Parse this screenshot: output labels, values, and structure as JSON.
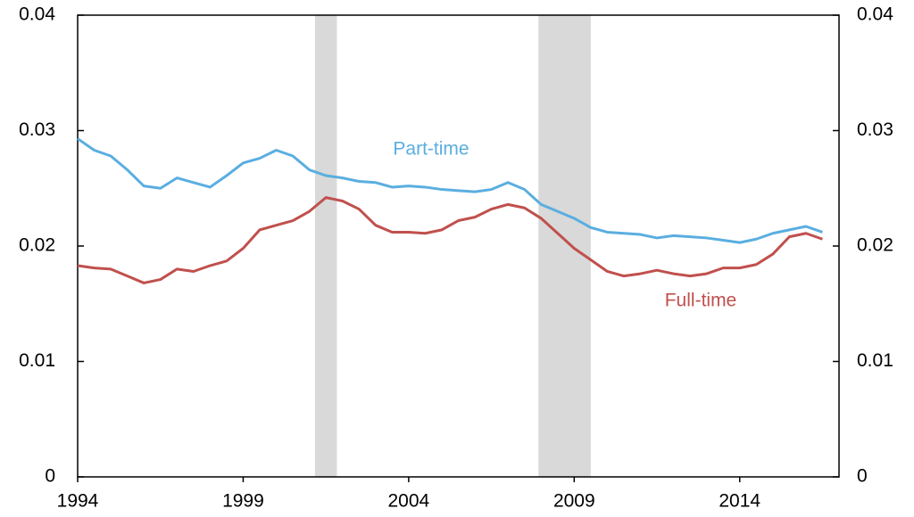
{
  "chart_data": {
    "type": "line",
    "x": [
      1994,
      1994.5,
      1995,
      1995.5,
      1996,
      1996.5,
      1997,
      1997.5,
      1998,
      1998.5,
      1999,
      1999.5,
      2000,
      2000.5,
      2001,
      2001.5,
      2002,
      2002.5,
      2003,
      2003.5,
      2004,
      2004.5,
      2005,
      2005.5,
      2006,
      2006.5,
      2007,
      2007.5,
      2008,
      2008.5,
      2009,
      2009.5,
      2010,
      2010.5,
      2011,
      2011.5,
      2012,
      2012.5,
      2013,
      2013.5,
      2014,
      2014.5,
      2015,
      2015.5,
      2016,
      2016.5
    ],
    "series": [
      {
        "name": "Part-time",
        "color": "#5aaee0",
        "values": [
          0.0293,
          0.0283,
          0.0278,
          0.0266,
          0.0252,
          0.025,
          0.0259,
          0.0255,
          0.0251,
          0.0261,
          0.0272,
          0.0276,
          0.0283,
          0.0278,
          0.0266,
          0.0261,
          0.0259,
          0.0256,
          0.0255,
          0.0251,
          0.0252,
          0.0251,
          0.0249,
          0.0248,
          0.0247,
          0.0249,
          0.0255,
          0.0249,
          0.0236,
          0.023,
          0.0224,
          0.0216,
          0.0212,
          0.0211,
          0.021,
          0.0207,
          0.0209,
          0.0208,
          0.0207,
          0.0205,
          0.0203,
          0.0206,
          0.0211,
          0.0214,
          0.0217,
          0.0212
        ]
      },
      {
        "name": "Full-time",
        "color": "#c0504d",
        "values": [
          0.0183,
          0.0181,
          0.018,
          0.0174,
          0.0168,
          0.0171,
          0.018,
          0.0178,
          0.0183,
          0.0187,
          0.0198,
          0.0214,
          0.0218,
          0.0222,
          0.023,
          0.0242,
          0.0239,
          0.0232,
          0.0218,
          0.0212,
          0.0212,
          0.0211,
          0.0214,
          0.0222,
          0.0225,
          0.0232,
          0.0236,
          0.0233,
          0.0224,
          0.0211,
          0.0198,
          0.0188,
          0.0178,
          0.0174,
          0.0176,
          0.0179,
          0.0176,
          0.0174,
          0.0176,
          0.0181,
          0.0181,
          0.0184,
          0.0193,
          0.0208,
          0.0211,
          0.0206
        ]
      }
    ],
    "shaded_regions": [
      [
        2001.17,
        2001.83
      ],
      [
        2007.92,
        2009.5
      ]
    ],
    "shade_color": "#d9d9d9",
    "xlim": [
      1994,
      2017
    ],
    "xticks": [
      1994,
      1999,
      2004,
      2009,
      2014
    ],
    "ylim": [
      0,
      0.04
    ],
    "yticks": [
      0,
      0.01,
      0.02,
      0.03,
      0.04
    ],
    "y2lim": [
      0,
      0.04
    ],
    "y2ticks": [
      0,
      0.01,
      0.02,
      0.03,
      0.04
    ],
    "grid": false
  }
}
